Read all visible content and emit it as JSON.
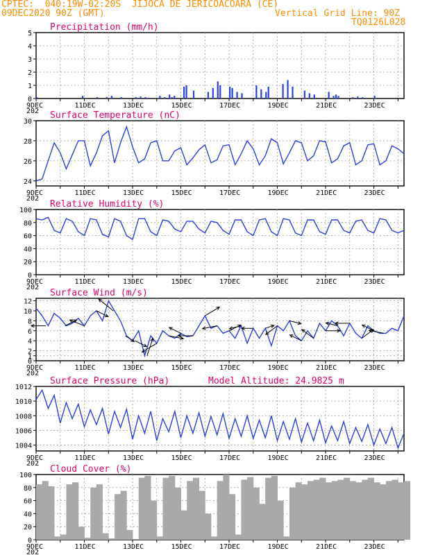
{
  "header": {
    "station": "CPTEC:  040:19W-02:20S  JIJOCA DE JERICOACOARA (CE)",
    "run": "09DEC2020 90Z (GMT)",
    "grid_note": "Vertical Grid Line: 90Z",
    "code": "TQ0126L028"
  },
  "x_labels": [
    "9DEC",
    "11DEC",
    "13DEC",
    "15DEC",
    "17DEC",
    "19DEC",
    "21DEC",
    "23DEC"
  ],
  "x_stub": "202",
  "colors": {
    "line": "#2a3fe0",
    "cloud": "#a9a9a9",
    "title": "#e0006e",
    "header": "#ff8c00"
  },
  "chart_data": [
    {
      "type": "bar",
      "title": "Precipitation (mm/h)",
      "ylim": [
        0,
        5
      ],
      "yticks": [
        "0",
        "1",
        "2",
        "3",
        "4",
        "5"
      ],
      "x_days": [
        0.0,
        0.5,
        1.9,
        2.5,
        2.9,
        3.1,
        3.5,
        4.1,
        4.3,
        4.5,
        4.7,
        5.1,
        5.3,
        5.5,
        5.6,
        5.7,
        5.8,
        6.1,
        6.2,
        6.5,
        7.1,
        7.3,
        7.5,
        7.6,
        8.0,
        8.1,
        8.3,
        8.5,
        9.1,
        9.3,
        9.5,
        9.6,
        10.2,
        10.4,
        10.6,
        11.1,
        11.3,
        11.5,
        12.1,
        12.3,
        12.4,
        12.5,
        13.1,
        13.3,
        13.5,
        14.0
      ],
      "values": [
        0.1,
        0.05,
        0.2,
        0.1,
        0.1,
        0.2,
        0.1,
        0.1,
        0.15,
        0.1,
        0.05,
        0.2,
        0.1,
        0.3,
        0.1,
        0.2,
        0.05,
        0.9,
        1.0,
        0.6,
        0.5,
        0.8,
        1.3,
        1.0,
        0.9,
        0.8,
        0.5,
        0.4,
        1.0,
        0.7,
        0.5,
        0.9,
        1.1,
        1.4,
        0.9,
        0.6,
        0.4,
        0.3,
        0.5,
        0.2,
        0.3,
        0.2,
        0.1,
        0.15,
        0.1,
        0.2
      ]
    },
    {
      "type": "line",
      "title": "Surface Temperature (nC)",
      "ylim": [
        23.5,
        30
      ],
      "yticks": [
        "24",
        "26",
        "28",
        "30"
      ],
      "x_days": [
        0.0,
        0.25,
        0.5,
        0.75,
        1.0,
        1.25,
        1.5,
        1.75,
        2.0,
        2.25,
        2.5,
        2.75,
        3.0,
        3.25,
        3.5,
        3.75,
        4.0,
        4.25,
        4.5,
        4.75,
        5.0,
        5.25,
        5.5,
        5.75,
        6.0,
        6.25,
        6.5,
        6.75,
        7.0,
        7.25,
        7.5,
        7.75,
        8.0,
        8.25,
        8.5,
        8.75,
        9.0,
        9.25,
        9.5,
        9.75,
        10.0,
        10.25,
        10.5,
        10.75,
        11.0,
        11.25,
        11.5,
        11.75,
        12.0,
        12.25,
        12.5,
        12.75,
        13.0,
        13.25,
        13.5,
        13.75,
        14.0,
        14.25,
        14.5,
        14.75,
        15.0,
        15.25
      ],
      "values": [
        24.0,
        24.2,
        26.0,
        27.8,
        26.8,
        25.2,
        26.6,
        28.0,
        28.0,
        25.5,
        26.8,
        28.5,
        29.0,
        25.8,
        27.8,
        29.4,
        27.4,
        25.8,
        26.2,
        27.8,
        28.0,
        26.0,
        26.0,
        27.0,
        27.3,
        25.6,
        26.3,
        27.1,
        27.6,
        25.8,
        26.1,
        27.5,
        27.6,
        25.6,
        26.7,
        28.0,
        27.2,
        25.6,
        26.5,
        28.2,
        27.8,
        25.7,
        26.8,
        28.0,
        27.8,
        26.0,
        26.5,
        28.0,
        27.9,
        25.8,
        26.2,
        27.5,
        27.8,
        25.6,
        26.0,
        27.6,
        27.7,
        25.6,
        26.0,
        27.5,
        27.2,
        26.7
      ]
    },
    {
      "type": "line",
      "title": "Relative Humidity (%)",
      "ylim": [
        0,
        100
      ],
      "yticks": [
        "0",
        "20",
        "40",
        "60",
        "80",
        "100"
      ],
      "x_days": [
        0.0,
        0.25,
        0.5,
        0.75,
        1.0,
        1.25,
        1.5,
        1.75,
        2.0,
        2.25,
        2.5,
        2.75,
        3.0,
        3.25,
        3.5,
        3.75,
        4.0,
        4.25,
        4.5,
        4.75,
        5.0,
        5.25,
        5.5,
        5.75,
        6.0,
        6.25,
        6.5,
        6.75,
        7.0,
        7.25,
        7.5,
        7.75,
        8.0,
        8.25,
        8.5,
        8.75,
        9.0,
        9.25,
        9.5,
        9.75,
        10.0,
        10.25,
        10.5,
        10.75,
        11.0,
        11.25,
        11.5,
        11.75,
        12.0,
        12.25,
        12.5,
        12.75,
        13.0,
        13.25,
        13.5,
        13.75,
        14.0,
        14.25,
        14.5,
        14.75,
        15.0,
        15.25
      ],
      "values": [
        86,
        84,
        88,
        68,
        64,
        86,
        82,
        66,
        60,
        86,
        84,
        62,
        58,
        86,
        82,
        60,
        54,
        86,
        86,
        66,
        60,
        84,
        82,
        70,
        66,
        82,
        82,
        70,
        64,
        82,
        80,
        68,
        62,
        84,
        84,
        66,
        60,
        84,
        86,
        66,
        60,
        86,
        84,
        64,
        60,
        84,
        84,
        66,
        62,
        84,
        84,
        68,
        64,
        82,
        84,
        68,
        64,
        86,
        84,
        68,
        64,
        68
      ]
    },
    {
      "type": "line",
      "title": "Surface Wind (m/s)",
      "ylim": [
        0,
        12.5
      ],
      "yticks": [
        "0",
        "1",
        "2",
        "4",
        "6",
        "8",
        "10",
        "12"
      ],
      "x_days": [
        0.0,
        0.25,
        0.5,
        0.75,
        1.0,
        1.25,
        1.5,
        1.75,
        2.0,
        2.25,
        2.5,
        2.75,
        3.0,
        3.25,
        3.5,
        3.75,
        4.0,
        4.25,
        4.5,
        4.75,
        5.0,
        5.25,
        5.5,
        5.75,
        6.0,
        6.25,
        6.5,
        6.75,
        7.0,
        7.25,
        7.5,
        7.75,
        8.0,
        8.25,
        8.5,
        8.75,
        9.0,
        9.25,
        9.5,
        9.75,
        10.0,
        10.25,
        10.5,
        10.75,
        11.0,
        11.25,
        11.5,
        11.75,
        12.0,
        12.25,
        12.5,
        12.75,
        13.0,
        13.25,
        13.5,
        13.75,
        14.0,
        14.25,
        14.5,
        14.75,
        15.0,
        15.25
      ],
      "values": [
        10.5,
        9.0,
        7.0,
        9.5,
        8.5,
        7.0,
        7.5,
        8.5,
        7.0,
        9.0,
        10.0,
        8.0,
        12.0,
        10.0,
        8.0,
        5.0,
        4.0,
        6.0,
        1.0,
        5.0,
        3.5,
        6.0,
        5.0,
        4.5,
        5.5,
        4.8,
        5.0,
        7.0,
        9.0,
        6.5,
        7.0,
        5.5,
        6.0,
        4.5,
        7.0,
        3.5,
        6.5,
        4.5,
        6.5,
        3.0,
        7.0,
        6.0,
        8.0,
        5.0,
        4.0,
        6.0,
        4.5,
        7.5,
        6.0,
        8.0,
        7.0,
        5.0,
        7.5,
        5.5,
        4.5,
        7.0,
        6.0,
        5.5,
        5.5,
        6.5,
        6.0,
        9.0
      ],
      "vector_x_days": [
        0.4,
        1.2,
        2.0,
        2.5,
        3.2,
        3.7,
        4.1,
        4.6,
        5.0,
        5.5,
        6.0,
        6.5,
        7.0,
        7.5,
        8.0,
        8.5,
        9.0,
        9.5,
        10.0,
        10.5,
        11.0,
        11.5,
        12.0,
        12.5,
        13.0,
        13.5,
        14.0,
        14.4
      ],
      "vector_u": [
        -5,
        4,
        -5,
        4,
        -5,
        3,
        4,
        2,
        -5,
        5,
        -4,
        -5,
        5,
        -5,
        4,
        -4,
        -4,
        3,
        -4,
        4,
        -4,
        -4,
        5,
        -4,
        -5,
        4,
        -4,
        -5
      ],
      "vector_v": [
        0,
        2,
        2,
        -2,
        4,
        -2,
        -2,
        6,
        -3,
        -1,
        2,
        0,
        3,
        -1,
        2,
        -1,
        0,
        1,
        -3,
        -1,
        2,
        3,
        0,
        1,
        0,
        3,
        2,
        1
      ]
    },
    {
      "type": "line",
      "title": "Surface Pressure (hPa)",
      "annotation": "Model Altitude: 24.9825 m",
      "ylim": [
        1003.2,
        1012
      ],
      "yticks": [
        "1004",
        "1006",
        "1008",
        "1010",
        "1012"
      ],
      "x_days": [
        0.0,
        0.25,
        0.5,
        0.75,
        1.0,
        1.25,
        1.5,
        1.75,
        2.0,
        2.25,
        2.5,
        2.75,
        3.0,
        3.25,
        3.5,
        3.75,
        4.0,
        4.25,
        4.5,
        4.75,
        5.0,
        5.25,
        5.5,
        5.75,
        6.0,
        6.25,
        6.5,
        6.75,
        7.0,
        7.25,
        7.5,
        7.75,
        8.0,
        8.25,
        8.5,
        8.75,
        9.0,
        9.25,
        9.5,
        9.75,
        10.0,
        10.25,
        10.5,
        10.75,
        11.0,
        11.25,
        11.5,
        11.75,
        12.0,
        12.25,
        12.5,
        12.75,
        13.0,
        13.25,
        13.5,
        13.75,
        14.0,
        14.25,
        14.5,
        14.75,
        15.0,
        15.25
      ],
      "values": [
        1010.2,
        1011.5,
        1009.0,
        1010.8,
        1007.0,
        1009.8,
        1007.6,
        1009.6,
        1006.5,
        1008.8,
        1006.8,
        1009.0,
        1005.5,
        1008.6,
        1006.4,
        1008.9,
        1004.8,
        1008.0,
        1005.6,
        1008.6,
        1004.6,
        1007.6,
        1005.8,
        1008.6,
        1005.0,
        1008.0,
        1005.6,
        1008.4,
        1005.2,
        1007.9,
        1005.4,
        1008.3,
        1004.9,
        1007.6,
        1005.2,
        1008.0,
        1004.9,
        1007.4,
        1005.0,
        1008.0,
        1004.6,
        1007.2,
        1004.8,
        1007.6,
        1004.4,
        1007.0,
        1004.6,
        1007.4,
        1004.3,
        1006.6,
        1004.6,
        1007.2,
        1004.2,
        1006.4,
        1004.5,
        1006.8,
        1004.0,
        1006.2,
        1004.2,
        1006.4,
        1003.6,
        1005.6
      ]
    },
    {
      "type": "area",
      "title": "Cloud Cover (%)",
      "ylim": [
        0,
        100
      ],
      "yticks": [
        "0",
        "20",
        "40",
        "60",
        "80",
        "100"
      ],
      "x_days": [
        0.0,
        0.25,
        0.5,
        0.75,
        1.0,
        1.25,
        1.5,
        1.75,
        2.0,
        2.25,
        2.5,
        2.75,
        3.0,
        3.25,
        3.5,
        3.75,
        4.0,
        4.25,
        4.5,
        4.75,
        5.0,
        5.25,
        5.5,
        5.75,
        6.0,
        6.25,
        6.5,
        6.75,
        7.0,
        7.25,
        7.5,
        7.75,
        8.0,
        8.25,
        8.5,
        8.75,
        9.0,
        9.25,
        9.5,
        9.75,
        10.0,
        10.25,
        10.5,
        10.75,
        11.0,
        11.25,
        11.5,
        11.75,
        12.0,
        12.25,
        12.5,
        12.75,
        13.0,
        13.25,
        13.5,
        13.75,
        14.0,
        14.25,
        14.5,
        14.75,
        15.0,
        15.25
      ],
      "values": [
        85,
        90,
        82,
        5,
        8,
        85,
        88,
        20,
        3,
        80,
        85,
        10,
        2,
        70,
        75,
        15,
        1,
        95,
        98,
        60,
        5,
        95,
        98,
        80,
        45,
        90,
        95,
        75,
        40,
        5,
        90,
        100,
        70,
        8,
        92,
        96,
        80,
        55,
        95,
        98,
        60,
        5,
        80,
        88,
        85,
        90,
        92,
        95,
        88,
        90,
        92,
        95,
        90,
        88,
        92,
        95,
        88,
        85,
        90,
        92,
        88,
        90
      ]
    }
  ]
}
